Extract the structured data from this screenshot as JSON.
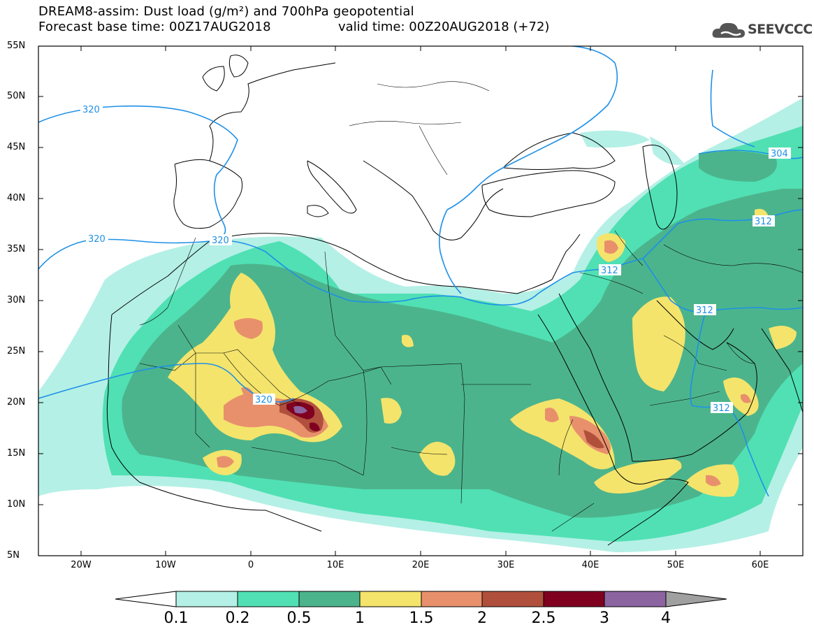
{
  "title": {
    "line1": "DREAM8-assim: Dust load (g/m²) and 700hPa geopotential",
    "line2": "Forecast base time: 00Z17AUG2018",
    "line2b": "valid time: 00Z20AUG2018 (+72)"
  },
  "logo": {
    "text": "SEEVCCC",
    "icon": "cloud-icon"
  },
  "axes": {
    "lat_labels": [
      "55N",
      "50N",
      "45N",
      "40N",
      "35N",
      "30N",
      "25N",
      "20N",
      "15N",
      "10N",
      "5N"
    ],
    "lon_labels": [
      "20W",
      "10W",
      "0",
      "10E",
      "20E",
      "30E",
      "40E",
      "50E",
      "60E"
    ],
    "lon_range": [
      -25,
      65
    ],
    "lat_range": [
      5,
      55
    ]
  },
  "contour_labels": [
    {
      "text": "320"
    },
    {
      "text": "320"
    },
    {
      "text": "320"
    },
    {
      "text": "320"
    },
    {
      "text": "312"
    },
    {
      "text": "312"
    },
    {
      "text": "312"
    },
    {
      "text": "312"
    },
    {
      "text": "304"
    }
  ],
  "colorbar": {
    "levels": [
      "0.1",
      "0.2",
      "0.5",
      "1",
      "1.5",
      "2",
      "2.5",
      "3",
      "4"
    ],
    "colors": [
      "#b4f0e6",
      "#50e0b4",
      "#4cb48c",
      "#f4e46c",
      "#e8906c",
      "#b0503c",
      "#800020",
      "#8c64a0"
    ],
    "under_color": "#ffffff",
    "over_color": "#a0a0a0"
  },
  "colors": {
    "geopotential_line": "#1e90e6",
    "coast": "#000000"
  }
}
